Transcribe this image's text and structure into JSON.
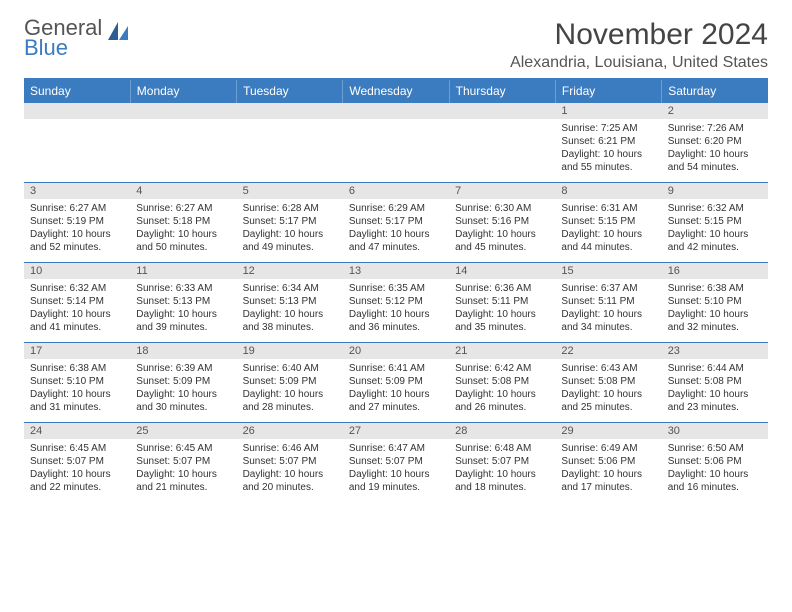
{
  "brand": {
    "part1": "General",
    "part2": "Blue"
  },
  "title": "November 2024",
  "location": "Alexandria, Louisiana, United States",
  "colors": {
    "accent": "#3b7bbf",
    "header_bg": "#3b7bbf",
    "daynum_bg": "#e6e6e6",
    "text": "#333333"
  },
  "weekdays": [
    "Sunday",
    "Monday",
    "Tuesday",
    "Wednesday",
    "Thursday",
    "Friday",
    "Saturday"
  ],
  "weeks": [
    [
      {
        "day": "",
        "sunrise": "",
        "sunset": "",
        "daylight": ""
      },
      {
        "day": "",
        "sunrise": "",
        "sunset": "",
        "daylight": ""
      },
      {
        "day": "",
        "sunrise": "",
        "sunset": "",
        "daylight": ""
      },
      {
        "day": "",
        "sunrise": "",
        "sunset": "",
        "daylight": ""
      },
      {
        "day": "",
        "sunrise": "",
        "sunset": "",
        "daylight": ""
      },
      {
        "day": "1",
        "sunrise": "Sunrise: 7:25 AM",
        "sunset": "Sunset: 6:21 PM",
        "daylight": "Daylight: 10 hours and 55 minutes."
      },
      {
        "day": "2",
        "sunrise": "Sunrise: 7:26 AM",
        "sunset": "Sunset: 6:20 PM",
        "daylight": "Daylight: 10 hours and 54 minutes."
      }
    ],
    [
      {
        "day": "3",
        "sunrise": "Sunrise: 6:27 AM",
        "sunset": "Sunset: 5:19 PM",
        "daylight": "Daylight: 10 hours and 52 minutes."
      },
      {
        "day": "4",
        "sunrise": "Sunrise: 6:27 AM",
        "sunset": "Sunset: 5:18 PM",
        "daylight": "Daylight: 10 hours and 50 minutes."
      },
      {
        "day": "5",
        "sunrise": "Sunrise: 6:28 AM",
        "sunset": "Sunset: 5:17 PM",
        "daylight": "Daylight: 10 hours and 49 minutes."
      },
      {
        "day": "6",
        "sunrise": "Sunrise: 6:29 AM",
        "sunset": "Sunset: 5:17 PM",
        "daylight": "Daylight: 10 hours and 47 minutes."
      },
      {
        "day": "7",
        "sunrise": "Sunrise: 6:30 AM",
        "sunset": "Sunset: 5:16 PM",
        "daylight": "Daylight: 10 hours and 45 minutes."
      },
      {
        "day": "8",
        "sunrise": "Sunrise: 6:31 AM",
        "sunset": "Sunset: 5:15 PM",
        "daylight": "Daylight: 10 hours and 44 minutes."
      },
      {
        "day": "9",
        "sunrise": "Sunrise: 6:32 AM",
        "sunset": "Sunset: 5:15 PM",
        "daylight": "Daylight: 10 hours and 42 minutes."
      }
    ],
    [
      {
        "day": "10",
        "sunrise": "Sunrise: 6:32 AM",
        "sunset": "Sunset: 5:14 PM",
        "daylight": "Daylight: 10 hours and 41 minutes."
      },
      {
        "day": "11",
        "sunrise": "Sunrise: 6:33 AM",
        "sunset": "Sunset: 5:13 PM",
        "daylight": "Daylight: 10 hours and 39 minutes."
      },
      {
        "day": "12",
        "sunrise": "Sunrise: 6:34 AM",
        "sunset": "Sunset: 5:13 PM",
        "daylight": "Daylight: 10 hours and 38 minutes."
      },
      {
        "day": "13",
        "sunrise": "Sunrise: 6:35 AM",
        "sunset": "Sunset: 5:12 PM",
        "daylight": "Daylight: 10 hours and 36 minutes."
      },
      {
        "day": "14",
        "sunrise": "Sunrise: 6:36 AM",
        "sunset": "Sunset: 5:11 PM",
        "daylight": "Daylight: 10 hours and 35 minutes."
      },
      {
        "day": "15",
        "sunrise": "Sunrise: 6:37 AM",
        "sunset": "Sunset: 5:11 PM",
        "daylight": "Daylight: 10 hours and 34 minutes."
      },
      {
        "day": "16",
        "sunrise": "Sunrise: 6:38 AM",
        "sunset": "Sunset: 5:10 PM",
        "daylight": "Daylight: 10 hours and 32 minutes."
      }
    ],
    [
      {
        "day": "17",
        "sunrise": "Sunrise: 6:38 AM",
        "sunset": "Sunset: 5:10 PM",
        "daylight": "Daylight: 10 hours and 31 minutes."
      },
      {
        "day": "18",
        "sunrise": "Sunrise: 6:39 AM",
        "sunset": "Sunset: 5:09 PM",
        "daylight": "Daylight: 10 hours and 30 minutes."
      },
      {
        "day": "19",
        "sunrise": "Sunrise: 6:40 AM",
        "sunset": "Sunset: 5:09 PM",
        "daylight": "Daylight: 10 hours and 28 minutes."
      },
      {
        "day": "20",
        "sunrise": "Sunrise: 6:41 AM",
        "sunset": "Sunset: 5:09 PM",
        "daylight": "Daylight: 10 hours and 27 minutes."
      },
      {
        "day": "21",
        "sunrise": "Sunrise: 6:42 AM",
        "sunset": "Sunset: 5:08 PM",
        "daylight": "Daylight: 10 hours and 26 minutes."
      },
      {
        "day": "22",
        "sunrise": "Sunrise: 6:43 AM",
        "sunset": "Sunset: 5:08 PM",
        "daylight": "Daylight: 10 hours and 25 minutes."
      },
      {
        "day": "23",
        "sunrise": "Sunrise: 6:44 AM",
        "sunset": "Sunset: 5:08 PM",
        "daylight": "Daylight: 10 hours and 23 minutes."
      }
    ],
    [
      {
        "day": "24",
        "sunrise": "Sunrise: 6:45 AM",
        "sunset": "Sunset: 5:07 PM",
        "daylight": "Daylight: 10 hours and 22 minutes."
      },
      {
        "day": "25",
        "sunrise": "Sunrise: 6:45 AM",
        "sunset": "Sunset: 5:07 PM",
        "daylight": "Daylight: 10 hours and 21 minutes."
      },
      {
        "day": "26",
        "sunrise": "Sunrise: 6:46 AM",
        "sunset": "Sunset: 5:07 PM",
        "daylight": "Daylight: 10 hours and 20 minutes."
      },
      {
        "day": "27",
        "sunrise": "Sunrise: 6:47 AM",
        "sunset": "Sunset: 5:07 PM",
        "daylight": "Daylight: 10 hours and 19 minutes."
      },
      {
        "day": "28",
        "sunrise": "Sunrise: 6:48 AM",
        "sunset": "Sunset: 5:07 PM",
        "daylight": "Daylight: 10 hours and 18 minutes."
      },
      {
        "day": "29",
        "sunrise": "Sunrise: 6:49 AM",
        "sunset": "Sunset: 5:06 PM",
        "daylight": "Daylight: 10 hours and 17 minutes."
      },
      {
        "day": "30",
        "sunrise": "Sunrise: 6:50 AM",
        "sunset": "Sunset: 5:06 PM",
        "daylight": "Daylight: 10 hours and 16 minutes."
      }
    ]
  ]
}
